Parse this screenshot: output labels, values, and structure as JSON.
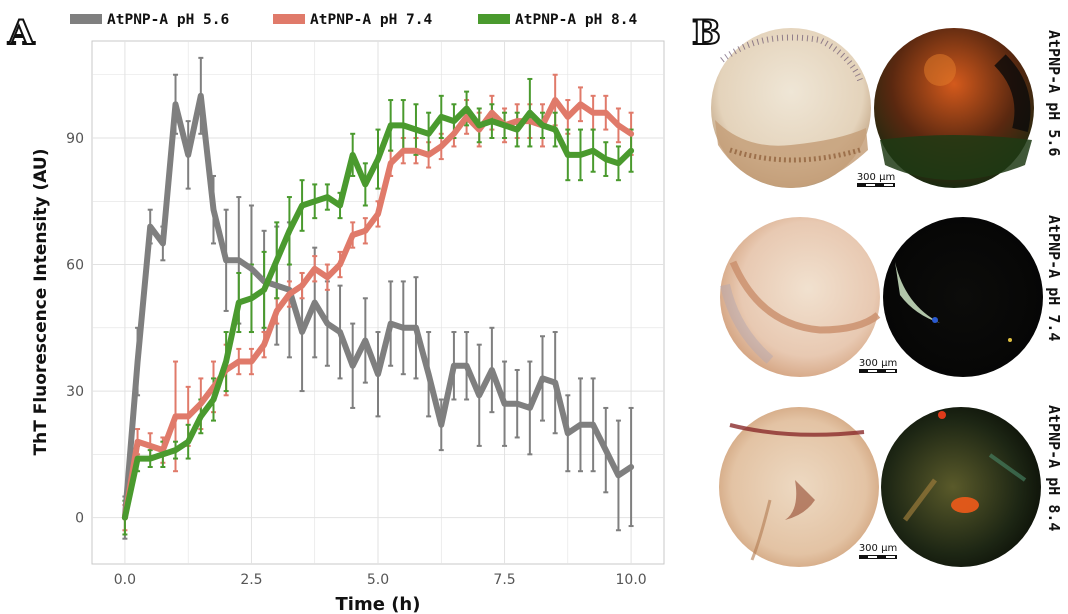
{
  "panel_a": {
    "letter": "A"
  },
  "panel_b": {
    "letter": "B",
    "scale_bar_label": "300 µm",
    "rows": [
      {
        "label": "AtPNP-A pH 5.6"
      },
      {
        "label": "AtPNP-A pH 7.4"
      },
      {
        "label": "AtPNP-A pH 8.4"
      }
    ]
  },
  "chart_data": {
    "type": "line",
    "title": "",
    "xlabel": "Time (h)",
    "ylabel": "ThT Fluorescence Intensity (AU)",
    "xlim": [
      -0.65,
      10.65
    ],
    "ylim": [
      -11,
      113
    ],
    "xticks": [
      0.0,
      2.5,
      5.0,
      7.5,
      10.0
    ],
    "xtick_labels": [
      "0.0",
      "2.5",
      "5.0",
      "7.5",
      "10.0"
    ],
    "yticks": [
      0,
      30,
      60,
      90
    ],
    "ytick_labels": [
      "0",
      "30",
      "60",
      "90"
    ],
    "grid": true,
    "legend_position": "top",
    "x": [
      0,
      0.25,
      0.5,
      0.75,
      1,
      1.25,
      1.5,
      1.75,
      2,
      2.25,
      2.5,
      2.75,
      3,
      3.25,
      3.5,
      3.75,
      4,
      4.25,
      4.5,
      4.75,
      5,
      5.25,
      5.5,
      5.75,
      6,
      6.25,
      6.5,
      6.75,
      7,
      7.25,
      7.5,
      7.75,
      8,
      8.25,
      8.5,
      8.75,
      9,
      9.25,
      9.5,
      9.75,
      10
    ],
    "series": [
      {
        "name": "AtPNP-A pH 5.6",
        "color": "#7f7f7f",
        "values": [
          0,
          37,
          69,
          65,
          98,
          86,
          100,
          73,
          61,
          61,
          59,
          56,
          55,
          54,
          44,
          51,
          46,
          44,
          36,
          42,
          34,
          46,
          45,
          45,
          34,
          22,
          36,
          36,
          29,
          35,
          27,
          27,
          26,
          33,
          32,
          20,
          22,
          22,
          16,
          10,
          12
        ],
        "errors": [
          5,
          8,
          4,
          4,
          7,
          8,
          9,
          8,
          12,
          15,
          15,
          12,
          14,
          16,
          14,
          13,
          10,
          11,
          10,
          10,
          10,
          10,
          11,
          12,
          10,
          6,
          8,
          8,
          12,
          10,
          10,
          8,
          11,
          10,
          12,
          9,
          11,
          11,
          10,
          13,
          14
        ]
      },
      {
        "name": "AtPNP-A pH 7.4",
        "color": "#e07a6a",
        "values": [
          0,
          18,
          17,
          16,
          24,
          24,
          27,
          31,
          35,
          37,
          37,
          41,
          49,
          53,
          55,
          59,
          57,
          60,
          67,
          68,
          72,
          84,
          87,
          87,
          86,
          88,
          91,
          95,
          92,
          96,
          93,
          94,
          94,
          93,
          99,
          95,
          98,
          96,
          96,
          93,
          91
        ],
        "errors": [
          3,
          3,
          3,
          3,
          13,
          7,
          6,
          6,
          6,
          3,
          3,
          3,
          3,
          3,
          3,
          3,
          3,
          3,
          3,
          3,
          3,
          3,
          3,
          3,
          3,
          3,
          3,
          4,
          4,
          4,
          4,
          4,
          4,
          5,
          6,
          4,
          4,
          4,
          4,
          4,
          5
        ]
      },
      {
        "name": "AtPNP-A pH 8.4",
        "color": "#4a9a2e",
        "values": [
          0,
          14,
          14,
          15,
          16,
          18,
          24,
          28,
          37,
          51,
          52,
          54,
          61,
          68,
          74,
          75,
          76,
          74,
          86,
          79,
          85,
          93,
          93,
          92,
          91,
          95,
          94,
          97,
          93,
          94,
          93,
          92,
          96,
          93,
          92,
          86,
          86,
          87,
          85,
          84,
          87
        ],
        "errors": [
          4,
          3,
          2,
          3,
          2,
          4,
          4,
          5,
          7,
          7,
          8,
          9,
          9,
          8,
          6,
          4,
          3,
          3,
          5,
          5,
          7,
          6,
          6,
          6,
          5,
          5,
          4,
          4,
          4,
          4,
          3,
          4,
          8,
          3,
          4,
          6,
          6,
          5,
          4,
          4,
          5
        ]
      }
    ]
  },
  "colors": {
    "gridline": "#e2e2e2",
    "panel_border": "#c9c9c9",
    "axis_text": "#555555",
    "title_text": "#111111"
  }
}
